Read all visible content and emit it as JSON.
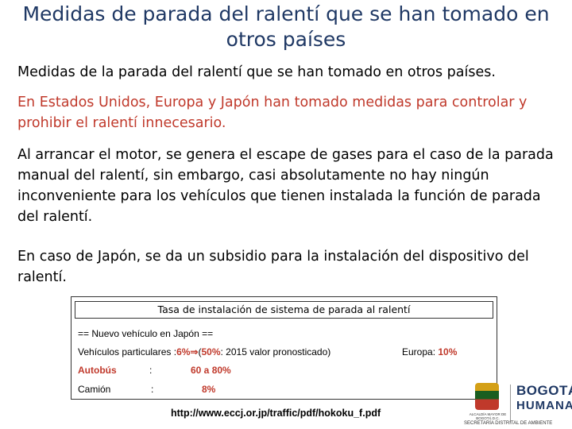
{
  "title": "Medidas de parada del ralentí que se han tomado en otros países",
  "subtitle": "Medidas de la parada del ralentí que se han tomado en otros países.",
  "paragraphs": [
    "En Estados Unidos, Europa y Japón han tomado medidas para controlar y prohibir el ralentí innecesario.",
    "Al arrancar el motor, se genera el escape de gases para  el caso de la parada manual del ralentí, sin embargo, casi absolutamente no hay ningún inconveniente para los vehículos que tienen instalada la función de parada del ralentí.",
    "En caso de Japón, se da un subsidio para la instalación del dispositivo del ralentí."
  ],
  "box": {
    "title": "Tasa de instalación de sistema de parada al ralentí",
    "header": "== Nuevo vehículo en Japón ==",
    "passenger_label": "Vehículos particulares :",
    "passenger_value": "6%",
    "arrow": "⇒",
    "forecast_open": "(",
    "forecast_value": "50%",
    "forecast_text": ": 2015 valor pronosticado)",
    "europe_label": "Europa: ",
    "europe_value": "10%",
    "bus_label": "Autobús",
    "bus_colon": ":",
    "bus_value": "60 a 80%",
    "truck_label": "Camión",
    "truck_colon": ":",
    "truck_value": "8%"
  },
  "source_url": "http://www.eccj.or.jp/traffic/pdf/hokoku_f.pdf",
  "logos": {
    "seal_text": "ALCALDÍA MAYOR DE BOGOTÁ D.C.",
    "bogota": "BOGOTÁ",
    "humana": "HUMANA",
    "secretaria": "SECRETARÍA DISTRITAL DE AMBIENTE"
  },
  "colors": {
    "title": "#1f3864",
    "highlight_red": "#c0392b"
  }
}
